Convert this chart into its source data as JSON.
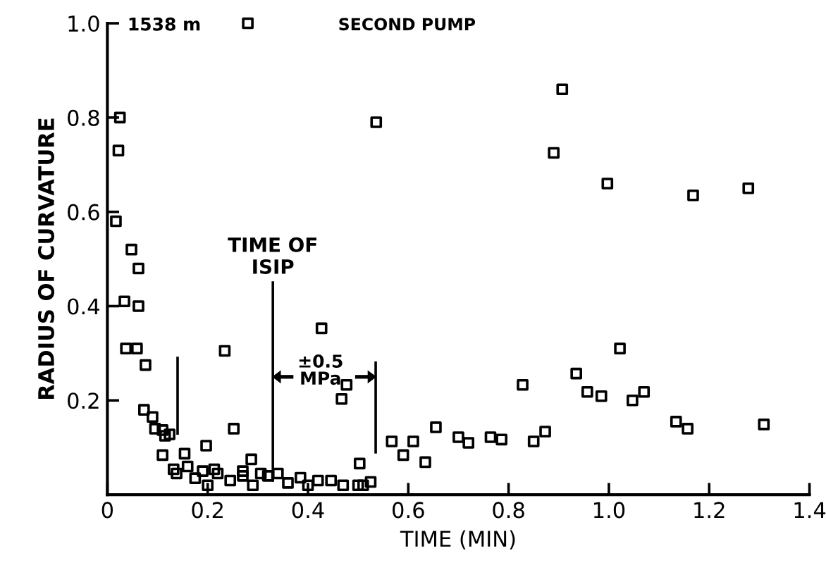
{
  "chart_data": {
    "type": "scatter",
    "xlabel": "TIME (MIN)",
    "ylabel": "RADIUS OF CURVATURE",
    "annotations": [
      "1538 m",
      "SECOND PUMP",
      "±0.5\nMPa"
    ],
    "marker": "square",
    "grid": false,
    "legend": false,
    "xlim": [
      0,
      1.4
    ],
    "ylim": [
      0,
      1.0
    ],
    "xticks": [
      0,
      0.2,
      0.4,
      0.6,
      0.8,
      {
        "value": 1.0,
        "label": "1.0"
      },
      1.2,
      1.4
    ],
    "yticks": [
      {
        "value": 0,
        "label": null
      },
      0.2,
      0.4,
      0.6,
      0.8,
      {
        "value": 1.0,
        "label": "1.0"
      }
    ],
    "ref_lines": [
      {
        "axis": "x",
        "value": 0.14,
        "label": null
      },
      {
        "axis": "x",
        "value": 0.33,
        "label": "TIME OF\nISIP"
      },
      {
        "axis": "x",
        "value": 0.535,
        "label": null
      }
    ],
    "series": [
      {
        "color": "#000000",
        "x": [
          0.28,
          0.025,
          0.022,
          0.017,
          0.048,
          0.062,
          0.536,
          0.907,
          0.89,
          0.997,
          1.168,
          1.278,
          0.034,
          0.062,
          0.037,
          0.059,
          0.076,
          0.073,
          0.09,
          0.095,
          0.11,
          0.115,
          0.124,
          0.11,
          0.234,
          0.252,
          0.197,
          0.154,
          0.287,
          0.427,
          0.477,
          0.467,
          0.503,
          0.567,
          0.59,
          0.61,
          0.132,
          0.138,
          0.16,
          0.175,
          0.19,
          0.2,
          0.213,
          0.22,
          0.245,
          0.27,
          0.27,
          0.29,
          0.306,
          0.32,
          0.34,
          0.36,
          0.385,
          0.4,
          0.42,
          0.446,
          0.47,
          0.5,
          0.51,
          0.525,
          0.634,
          0.655,
          0.7,
          0.72,
          0.764,
          0.786,
          0.828,
          0.85,
          0.873,
          0.935,
          0.957,
          0.985,
          1.022,
          1.047,
          1.07,
          1.134,
          1.157,
          1.309
        ],
        "values": [
          1.0,
          0.8,
          0.73,
          0.58,
          0.52,
          0.48,
          0.79,
          0.86,
          0.725,
          0.66,
          0.635,
          0.65,
          0.41,
          0.4,
          0.31,
          0.31,
          0.275,
          0.18,
          0.165,
          0.14,
          0.137,
          0.125,
          0.128,
          0.084,
          0.305,
          0.14,
          0.104,
          0.087,
          0.075,
          0.353,
          0.233,
          0.203,
          0.066,
          0.113,
          0.084,
          0.113,
          0.054,
          0.045,
          0.06,
          0.035,
          0.05,
          0.02,
          0.054,
          0.045,
          0.03,
          0.05,
          0.04,
          0.02,
          0.045,
          0.04,
          0.045,
          0.025,
          0.036,
          0.02,
          0.03,
          0.03,
          0.02,
          0.02,
          0.02,
          0.027,
          0.069,
          0.143,
          0.122,
          0.11,
          0.122,
          0.117,
          0.233,
          0.113,
          0.134,
          0.257,
          0.218,
          0.209,
          0.31,
          0.2,
          0.218,
          0.155,
          0.14,
          0.149
        ]
      }
    ]
  }
}
